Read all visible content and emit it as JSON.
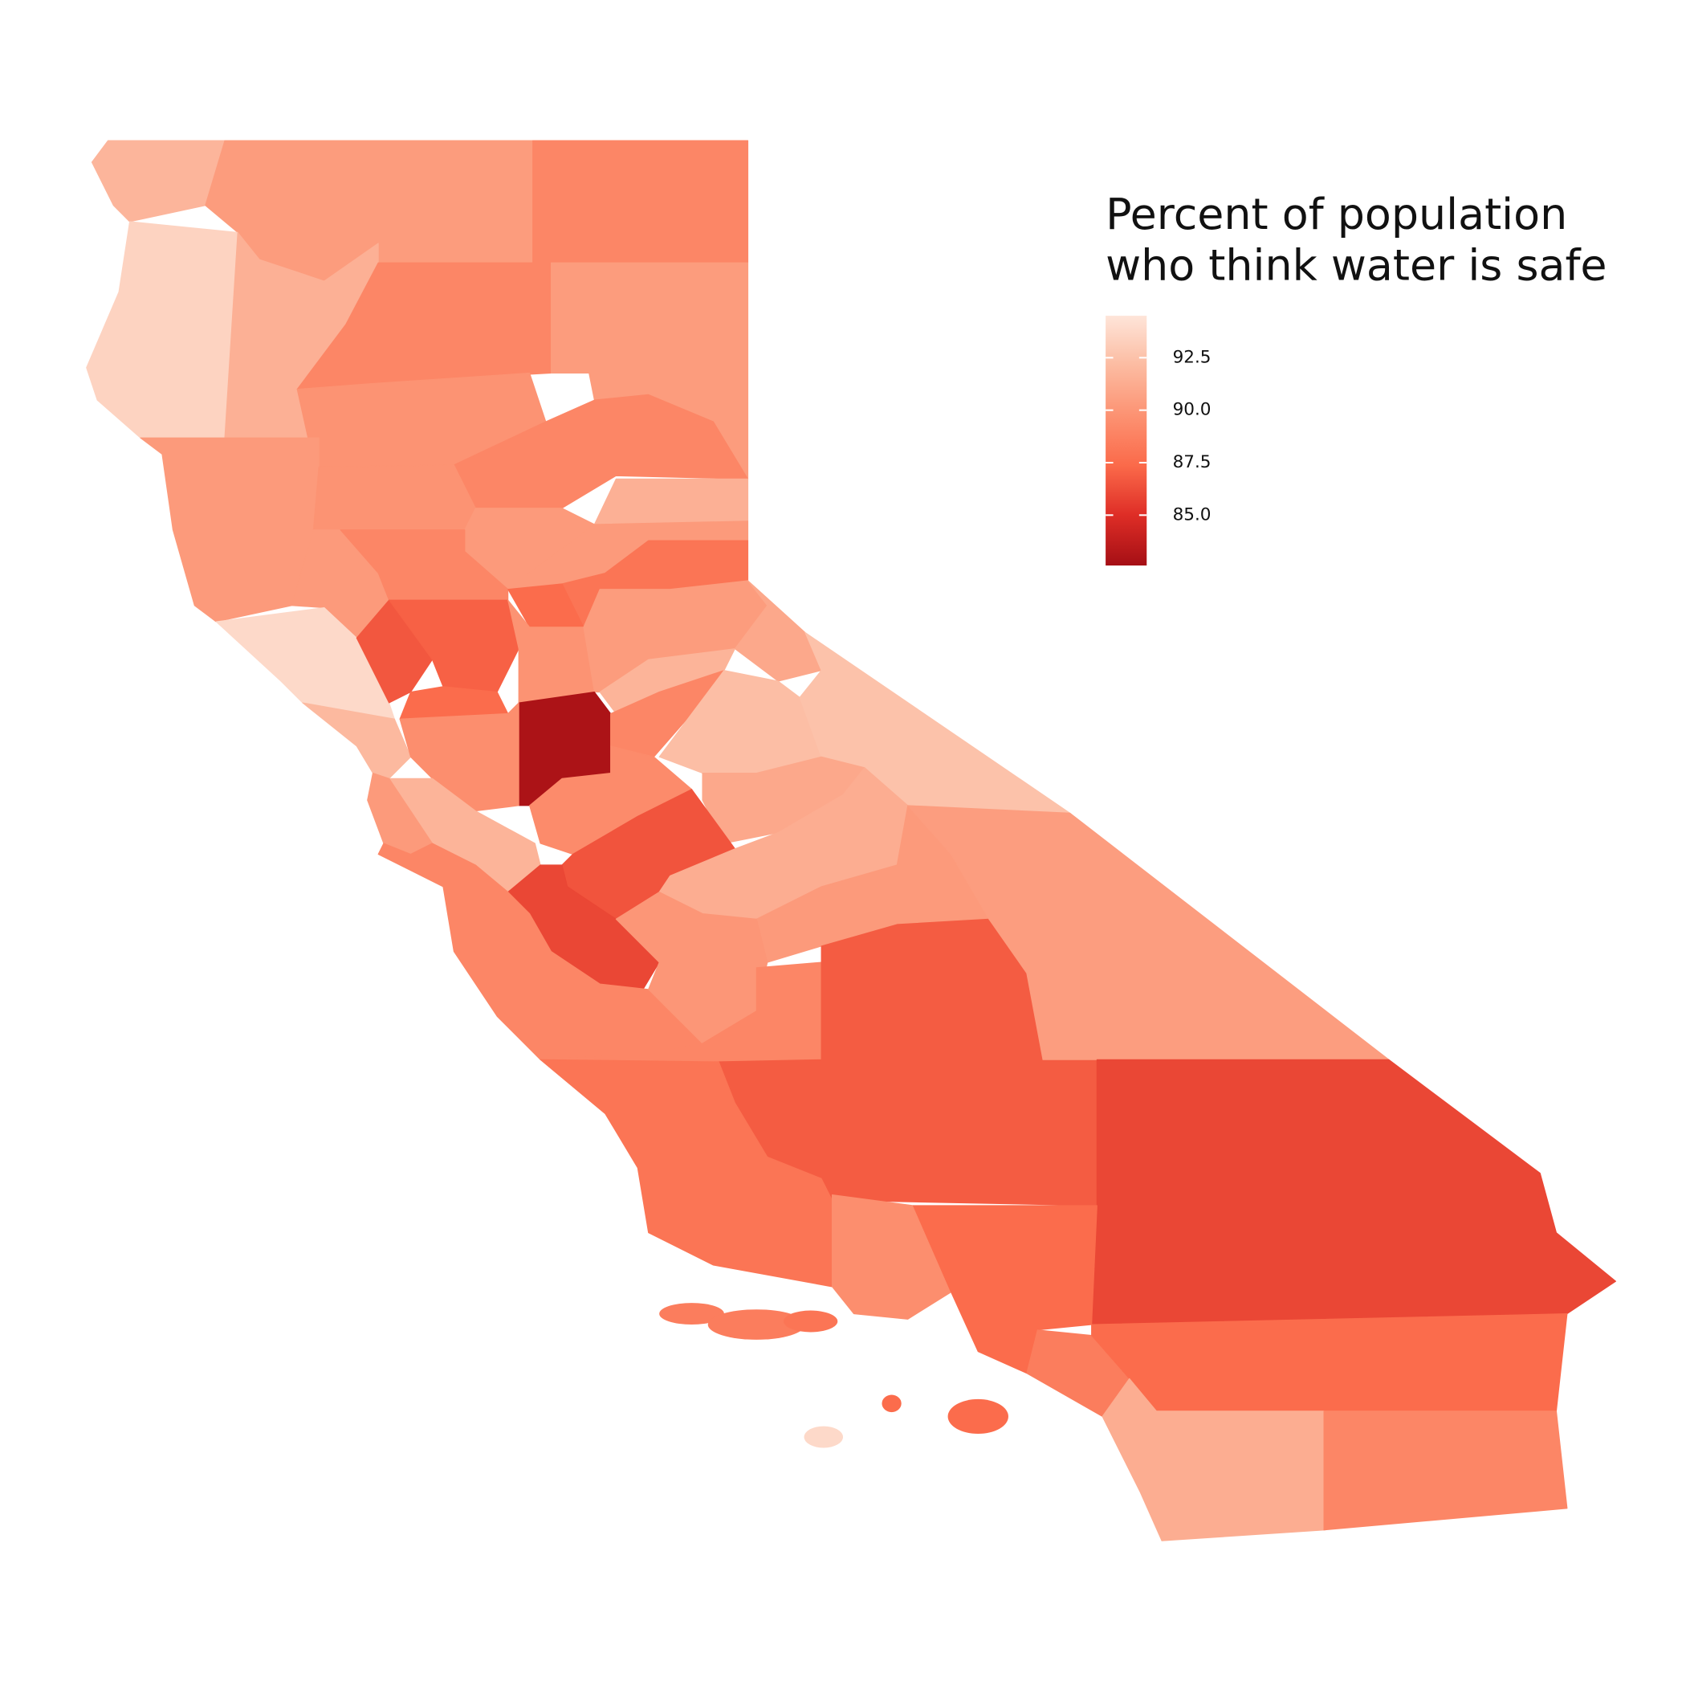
{
  "chart_data": {
    "type": "choropleth",
    "legend_title": [
      "Percent of population",
      "who think water is safe"
    ],
    "colorbar": {
      "lim": [
        82.6,
        94.5
      ],
      "ticks": [
        92.5,
        {
          "value": 90,
          "label": "90.0"
        },
        87.5,
        {
          "value": 85,
          "label": "85.0"
        }
      ],
      "colors": [
        "#a50f15",
        "#de2d26",
        "#fb6a4a",
        "#fc9272",
        "#fcbba1",
        "#fee5d9"
      ]
    },
    "values": [
      91.8,
      90.3,
      89,
      93.5,
      91.5,
      89,
      90.3,
      89.8,
      89,
      90.2,
      89.8,
      91.5,
      90.2,
      90.2,
      89,
      90.2,
      88,
      87.5,
      93.8,
      86.6,
      87,
      87.5,
      89.8,
      90.3,
      91.7,
      82.9,
      92,
      89.5,
      89,
      91,
      92.3,
      92.5,
      89.3,
      91,
      86.5,
      91.7,
      90.2,
      86,
      89,
      91.3,
      90.2,
      90,
      89,
      86.8,
      90.4,
      86,
      88,
      89.5,
      87.5,
      88.5,
      87.5,
      91.3,
      89,
      88.5,
      88.5,
      88,
      87.5,
      87.5,
      93.8
    ]
  }
}
